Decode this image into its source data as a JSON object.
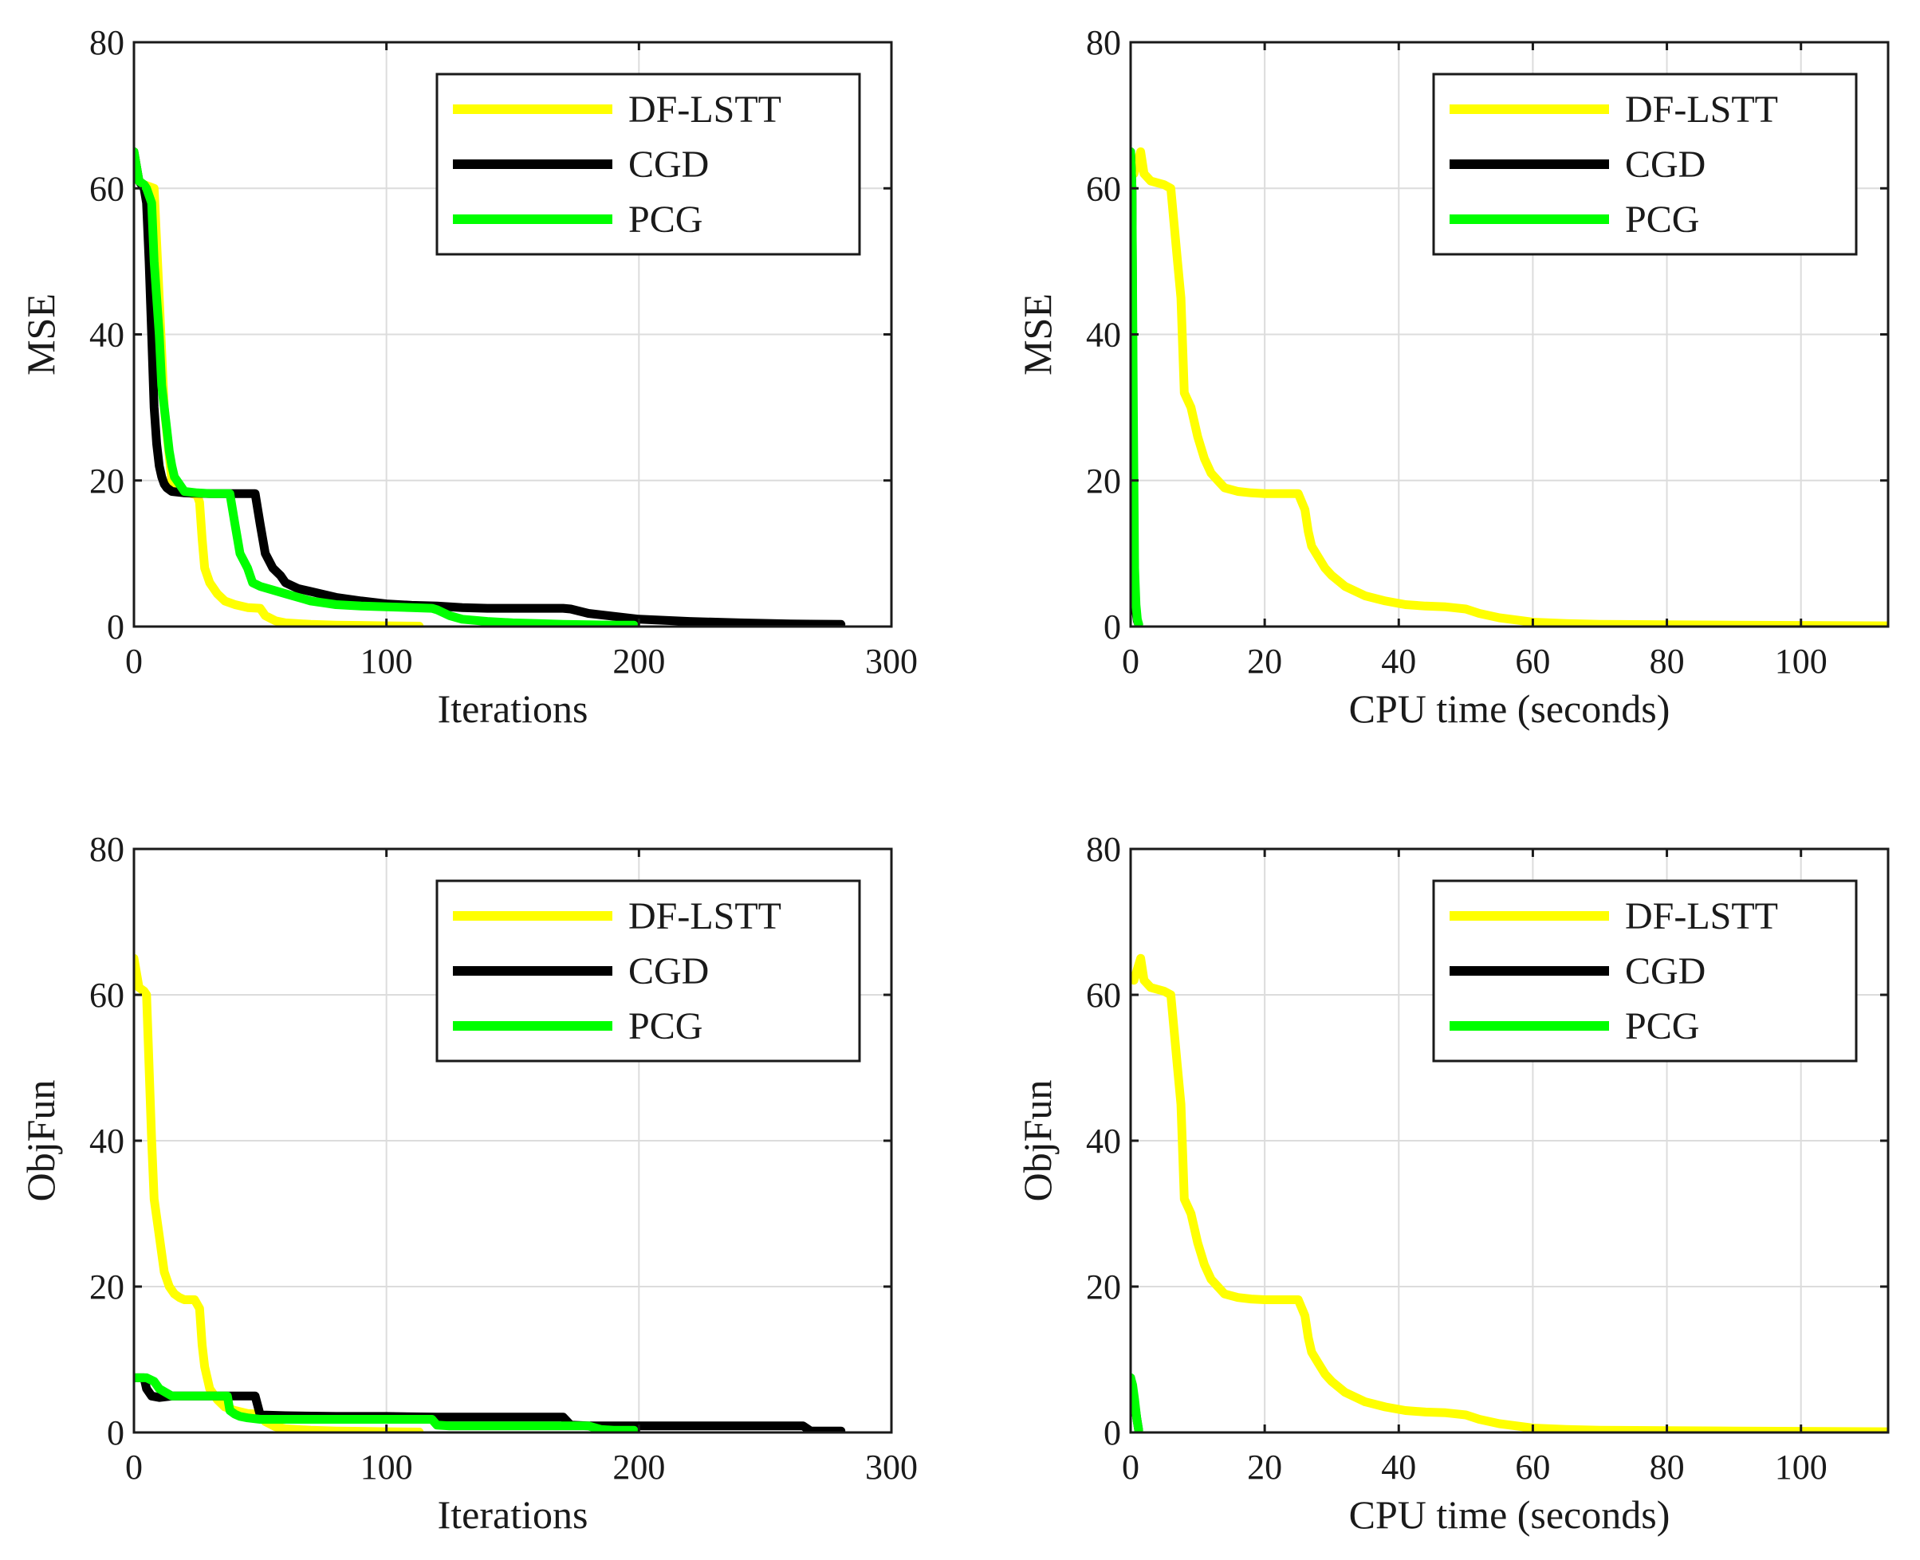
{
  "colors": {
    "DF-LSTT": "#ffff00",
    "CGD": "#000000",
    "PCG": "#00ff00"
  },
  "chart_data": [
    {
      "type": "line",
      "position": "top-left",
      "xlabel": "Iterations",
      "ylabel": "MSE",
      "xlim": [
        0,
        300
      ],
      "ylim": [
        0,
        80
      ],
      "xticks": [
        0,
        100,
        200,
        300
      ],
      "yticks": [
        0,
        20,
        40,
        60,
        80
      ],
      "grid": true,
      "legend": "top-right",
      "series": [
        {
          "name": "DF-LSTT",
          "x": [
            0,
            2,
            4,
            8,
            10,
            12,
            15,
            20,
            25,
            26,
            27,
            28,
            30,
            33,
            36,
            40,
            45,
            50,
            52,
            56,
            60,
            70,
            80,
            90,
            100,
            113
          ],
          "y": [
            65,
            61,
            60.5,
            60,
            45,
            30,
            20,
            18.5,
            18,
            17,
            12,
            8,
            6,
            4.5,
            3.5,
            3,
            2.6,
            2.5,
            1.5,
            0.8,
            0.5,
            0.3,
            0.2,
            0.15,
            0.1,
            0.05
          ]
        },
        {
          "name": "CGD",
          "x": [
            0,
            2,
            3,
            4,
            5,
            6,
            7,
            8,
            9,
            10,
            11,
            12,
            13,
            15,
            20,
            30,
            40,
            48,
            50,
            52,
            55,
            58,
            60,
            65,
            70,
            80,
            90,
            100,
            110,
            120,
            130,
            140,
            150,
            160,
            170,
            173,
            180,
            200,
            220,
            240,
            260,
            280
          ],
          "y": [
            65,
            61,
            60.5,
            60,
            58,
            50,
            40,
            30,
            25,
            22,
            20.5,
            19.5,
            19,
            18.5,
            18.3,
            18.2,
            18.2,
            18.2,
            14,
            10,
            8,
            7,
            6,
            5.2,
            4.8,
            4,
            3.5,
            3.1,
            2.9,
            2.8,
            2.6,
            2.5,
            2.5,
            2.5,
            2.5,
            2.4,
            1.8,
            1.0,
            0.7,
            0.5,
            0.35,
            0.3
          ]
        },
        {
          "name": "PCG",
          "x": [
            0,
            2,
            4,
            5,
            7,
            8,
            9,
            10,
            11,
            12,
            13,
            14,
            15,
            16,
            18,
            20,
            25,
            30,
            35,
            38,
            40,
            42,
            45,
            47,
            50,
            55,
            60,
            65,
            70,
            80,
            90,
            100,
            110,
            118,
            120,
            125,
            130,
            140,
            150,
            160,
            170,
            180,
            190,
            198
          ],
          "y": [
            65,
            61,
            60.5,
            60,
            58,
            50,
            45,
            40,
            33,
            30,
            27,
            24,
            22,
            20.5,
            19.5,
            18.5,
            18.3,
            18.2,
            18.2,
            18.2,
            14,
            10,
            8,
            6,
            5.5,
            5,
            4.5,
            4,
            3.5,
            3,
            2.8,
            2.7,
            2.6,
            2.5,
            2.3,
            1.5,
            1.0,
            0.7,
            0.5,
            0.4,
            0.3,
            0.25,
            0.2,
            0.2
          ]
        }
      ]
    },
    {
      "type": "line",
      "position": "top-right",
      "xlabel": "CPU time (seconds)",
      "ylabel": "MSE",
      "xlim": [
        0,
        113
      ],
      "ylim": [
        0,
        80
      ],
      "xticks": [
        0,
        20,
        40,
        60,
        80,
        100
      ],
      "yticks": [
        0,
        20,
        40,
        60,
        80
      ],
      "grid": true,
      "legend": "top-right",
      "series": [
        {
          "name": "DF-LSTT",
          "x": [
            0.5,
            1.5,
            2,
            3,
            5,
            6,
            7,
            7.5,
            8,
            8.5,
            9,
            10,
            11,
            12,
            13,
            14,
            16,
            18,
            20,
            24,
            25,
            26,
            26.5,
            27,
            28,
            29,
            30,
            32,
            35,
            38,
            41,
            44,
            47,
            48,
            50,
            52,
            55,
            60,
            65,
            70,
            80,
            90,
            100,
            113
          ],
          "y": [
            62,
            65,
            62,
            61,
            60.5,
            60,
            50,
            45,
            32,
            31,
            30,
            26,
            23,
            21,
            20,
            19,
            18.5,
            18.3,
            18.2,
            18.2,
            18.2,
            16,
            13,
            11,
            9.5,
            8,
            7,
            5.5,
            4.2,
            3.5,
            3,
            2.8,
            2.7,
            2.6,
            2.4,
            1.8,
            1.2,
            0.6,
            0.4,
            0.3,
            0.25,
            0.2,
            0.15,
            0.1
          ]
        },
        {
          "name": "CGD",
          "x": [
            0,
            0.2,
            0.4,
            0.6,
            0.8,
            1.0,
            1.2
          ],
          "y": [
            65,
            60,
            20,
            5,
            2,
            0.8,
            0.3
          ]
        },
        {
          "name": "PCG",
          "x": [
            0,
            0.2,
            0.4,
            0.6,
            0.8,
            1.0,
            1.2
          ],
          "y": [
            65,
            60,
            30,
            8,
            3,
            1,
            0.3
          ]
        }
      ]
    },
    {
      "type": "line",
      "position": "bottom-left",
      "xlabel": "Iterations",
      "ylabel": "ObjFun",
      "xlim": [
        0,
        300
      ],
      "ylim": [
        0,
        80
      ],
      "xticks": [
        0,
        100,
        200,
        300
      ],
      "yticks": [
        0,
        20,
        40,
        60,
        80
      ],
      "grid": true,
      "legend": "top-right",
      "series": [
        {
          "name": "DF-LSTT",
          "x": [
            0,
            2,
            4,
            5,
            6,
            7,
            8,
            10,
            12,
            14,
            16,
            18,
            20,
            24,
            26,
            27,
            28,
            30,
            33,
            36,
            40,
            45,
            50,
            52,
            56,
            60,
            70,
            80,
            90,
            100,
            113
          ],
          "y": [
            65,
            61,
            60.5,
            60,
            50,
            40,
            32,
            27,
            22,
            20,
            19,
            18.5,
            18.2,
            18.2,
            17,
            12,
            9,
            6,
            4.5,
            3.5,
            3,
            2.6,
            2.5,
            1.5,
            0.8,
            0.5,
            0.3,
            0.2,
            0.15,
            0.1,
            0.05
          ]
        },
        {
          "name": "CGD",
          "x": [
            0,
            4,
            5,
            7,
            10,
            15,
            20,
            30,
            40,
            48,
            50,
            60,
            80,
            100,
            120,
            140,
            160,
            170,
            173,
            180,
            200,
            220,
            240,
            260,
            265,
            268,
            280
          ],
          "y": [
            7.5,
            7.5,
            6,
            5,
            4.8,
            5,
            5,
            5,
            5,
            5,
            2.4,
            2.3,
            2.2,
            2.2,
            2.1,
            2.1,
            2.1,
            2.1,
            1.0,
            0.9,
            0.9,
            0.9,
            0.9,
            0.9,
            0.9,
            0.2,
            0.2
          ]
        },
        {
          "name": "PCG",
          "x": [
            0,
            5,
            8,
            10,
            15,
            20,
            30,
            37,
            38,
            40,
            42,
            45,
            50,
            60,
            80,
            100,
            110,
            118,
            120,
            125,
            130,
            150,
            170,
            180,
            185,
            190,
            198
          ],
          "y": [
            7.5,
            7.5,
            7,
            6,
            5,
            5,
            5,
            5,
            3,
            2.5,
            2.2,
            2,
            1.8,
            1.8,
            1.8,
            1.8,
            1.8,
            1.8,
            1.0,
            0.9,
            0.9,
            0.9,
            0.9,
            0.9,
            0.4,
            0.3,
            0.3
          ]
        }
      ]
    },
    {
      "type": "line",
      "position": "bottom-right",
      "xlabel": "CPU time (seconds)",
      "ylabel": "ObjFun",
      "xlim": [
        0,
        113
      ],
      "ylim": [
        0,
        80
      ],
      "xticks": [
        0,
        20,
        40,
        60,
        80,
        100
      ],
      "yticks": [
        0,
        20,
        40,
        60,
        80
      ],
      "grid": true,
      "legend": "top-right",
      "series": [
        {
          "name": "DF-LSTT",
          "x": [
            0.5,
            1.5,
            2,
            3,
            5,
            6,
            7,
            7.5,
            8,
            8.5,
            9,
            10,
            11,
            12,
            13,
            14,
            16,
            18,
            20,
            24,
            25,
            26,
            26.5,
            27,
            28,
            29,
            30,
            32,
            35,
            38,
            41,
            44,
            47,
            48,
            50,
            52,
            55,
            60,
            65,
            70,
            80,
            90,
            100,
            113
          ],
          "y": [
            62,
            65,
            62,
            61,
            60.5,
            60,
            50,
            45,
            32,
            31,
            30,
            26,
            23,
            21,
            20,
            19,
            18.5,
            18.3,
            18.2,
            18.2,
            18.2,
            16,
            13,
            11,
            9.5,
            8,
            7,
            5.5,
            4.2,
            3.5,
            3,
            2.8,
            2.7,
            2.6,
            2.4,
            1.8,
            1.2,
            0.6,
            0.4,
            0.3,
            0.25,
            0.2,
            0.15,
            0.1
          ]
        },
        {
          "name": "CGD",
          "x": [
            0,
            0.3,
            0.6,
            0.9,
            1.2
          ],
          "y": [
            7.5,
            6,
            4,
            2,
            0.3
          ]
        },
        {
          "name": "PCG",
          "x": [
            0,
            0.3,
            0.6,
            0.9,
            1.2
          ],
          "y": [
            7.5,
            6.5,
            4.5,
            2,
            0.3
          ]
        }
      ]
    }
  ]
}
